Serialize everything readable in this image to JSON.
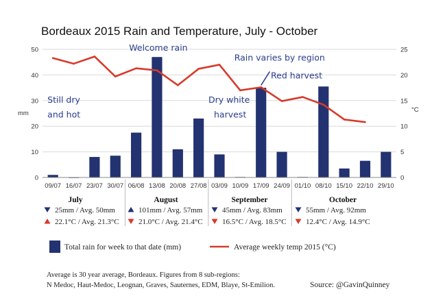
{
  "chart_data": {
    "type": "bar",
    "title": "Bordeaux 2015 Rain and Temperature, July - October",
    "ylabel": "mm",
    "y2label": "°C",
    "ylim": [
      0,
      50
    ],
    "y2lim": [
      0,
      25
    ],
    "yticks": [
      "0",
      "10",
      "20",
      "30",
      "40",
      "50"
    ],
    "y2ticks": [
      "0",
      "5",
      "10",
      "15",
      "20",
      "25"
    ],
    "categories": [
      "09/07",
      "16/07",
      "23/07",
      "30/07",
      "06/08",
      "13/08",
      "20/08",
      "27/08",
      "03/09",
      "10/09",
      "17/09",
      "24/09",
      "01/10",
      "08/10",
      "15/10",
      "22/10",
      "29/10"
    ],
    "series": [
      {
        "name": "Total rain for week to that date (mm)",
        "kind": "bar",
        "axis": "left",
        "color": "#233270",
        "values": [
          1,
          0,
          8,
          8.5,
          17.5,
          47,
          11,
          23,
          9,
          0.2,
          35,
          10,
          0.2,
          35.5,
          3.5,
          6.5,
          10
        ]
      },
      {
        "name": "Average weekly temp 2015 (°C)",
        "kind": "line",
        "axis": "right",
        "color": "#d63a2b",
        "values": [
          23.3,
          22.2,
          23.6,
          19.7,
          21.3,
          20.9,
          18,
          21.2,
          22,
          17,
          17.6,
          14.9,
          15.7,
          14.2,
          11.3,
          10.8,
          null
        ]
      }
    ],
    "annotations": [
      {
        "text": "Still dry",
        "category": "09/07",
        "y": 14.6
      },
      {
        "text": "and hot",
        "category": "09/07",
        "y": 11.7
      },
      {
        "text": "Welcome rain",
        "category": "13/08",
        "y": 24.7
      },
      {
        "text": "Rain varies by region",
        "category": "17/09",
        "y": 22.8
      },
      {
        "text": "Red harvest",
        "category": "24/09",
        "y": 19.3
      },
      {
        "text": "Dry white",
        "category": "03/09",
        "y": 14.6
      },
      {
        "text": "harvest",
        "category": "03/09",
        "y": 11.7
      }
    ],
    "grid": true,
    "legend": "bottom"
  },
  "months": [
    {
      "name": "July",
      "rain": "25mm / Avg. 50mm",
      "rain_dir": "down",
      "temp": "22.1°C / Avg. 21.3°C",
      "temp_dir": "up"
    },
    {
      "name": "August",
      "rain": "101mm / Avg. 57mm",
      "rain_dir": "up",
      "temp": "21.0°C / Avg. 21.4°C",
      "temp_dir": "down"
    },
    {
      "name": "September",
      "rain": "45mm / Avg. 83mm",
      "rain_dir": "down",
      "temp": "16.5°C / Avg. 18.5°C",
      "temp_dir": "down"
    },
    {
      "name": "October",
      "rain": "55mm / Avg. 92mm",
      "rain_dir": "down",
      "temp": "12.4°C / Avg. 14.9°C",
      "temp_dir": "down"
    }
  ],
  "footer": {
    "note_line1": "Average is 30 year average, Bordeaux. Figures from 8 sub-regions:",
    "note_line2": "N Medoc, Haut-Medoc, Leognan, Graves, Sauternes, EDM, Blaye, St-Emilion.",
    "source": "Source: @GavinQuinney"
  },
  "colors": {
    "rain_arrow": "#233270",
    "temp_arrow": "#d63a2b",
    "grid": "#d9d9d9"
  }
}
